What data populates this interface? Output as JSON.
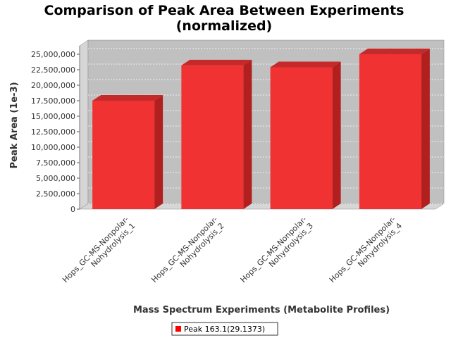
{
  "chart_data": {
    "type": "bar",
    "title_lines": [
      "Comparison of Peak Area Between Experiments",
      "(normalized)"
    ],
    "xlabel": "Mass Spectrum Experiments (Metabolite Profiles)",
    "ylabel": "Peak Area (1e-3)",
    "categories": [
      [
        "Hops_GC-MS-Nonpolar-",
        "Nohydrolysis_1"
      ],
      [
        "Hops_GC-MS-Nonpolar-",
        "Nohydrolysis_2"
      ],
      [
        "Hops_GC-MS-Nonpolar-",
        "Nohydrolysis_3"
      ],
      [
        "Hops_GC-MS-Nonpolar-",
        "Nohydrolysis_4"
      ]
    ],
    "series": [
      {
        "name": "Peak 163.1(29.1373)",
        "color": "#ff0000",
        "values": [
          17500000,
          23200000,
          22900000,
          25000000
        ]
      }
    ],
    "ylim": [
      0,
      25000000
    ],
    "yticks": [
      0,
      2500000,
      5000000,
      7500000,
      10000000,
      12500000,
      15000000,
      17500000,
      20000000,
      22500000,
      25000000
    ],
    "ytick_labels": [
      "0",
      "2,500,000",
      "5,000,000",
      "7,500,000",
      "10,000,000",
      "12,500,000",
      "15,000,000",
      "17,500,000",
      "20,000,000",
      "22,500,000",
      "25,000,000"
    ],
    "grid": true,
    "legend_position": "bottom"
  }
}
